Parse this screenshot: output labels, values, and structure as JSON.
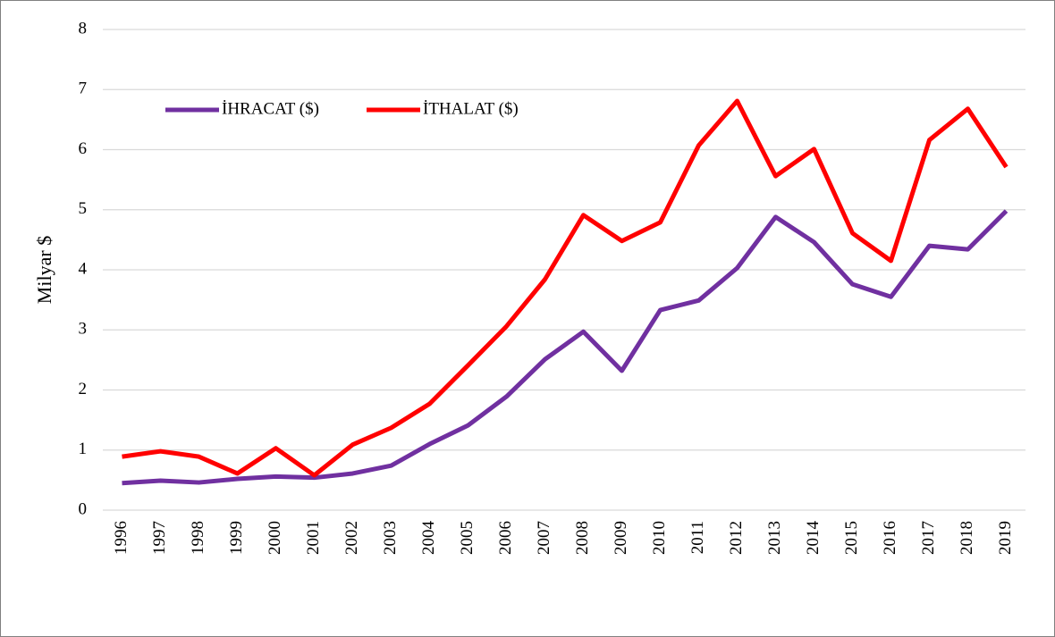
{
  "chart_data": {
    "type": "line",
    "y_label": "Milyar $",
    "categories": [
      "1996",
      "1997",
      "1998",
      "1999",
      "2000",
      "2001",
      "2002",
      "2003",
      "2004",
      "2005",
      "2006",
      "2007",
      "2008",
      "2009",
      "2010",
      "2011",
      "2012",
      "2013",
      "2014",
      "2015",
      "2016",
      "2017",
      "2018",
      "2019"
    ],
    "series": [
      {
        "name": "İHRACAT ($)",
        "color": "#7030a0",
        "values": [
          0.45,
          0.49,
          0.46,
          0.52,
          0.56,
          0.54,
          0.61,
          0.74,
          1.1,
          1.41,
          1.89,
          2.51,
          2.97,
          2.32,
          3.33,
          3.49,
          4.03,
          4.88,
          4.46,
          3.76,
          3.55,
          4.4,
          4.34,
          4.98
        ]
      },
      {
        "name": "İTHALAT ($)",
        "color": "#ff0000",
        "values": [
          0.89,
          0.98,
          0.89,
          0.61,
          1.03,
          0.58,
          1.09,
          1.37,
          1.77,
          2.41,
          3.06,
          3.84,
          4.91,
          4.48,
          4.79,
          6.07,
          6.81,
          5.56,
          6.01,
          4.61,
          4.15,
          6.16,
          6.68,
          5.71
        ]
      }
    ],
    "ylim": [
      0,
      8
    ],
    "yticks": [
      0,
      1,
      2,
      3,
      4,
      5,
      6,
      7,
      8
    ],
    "grid": true,
    "legend": "top-left"
  }
}
